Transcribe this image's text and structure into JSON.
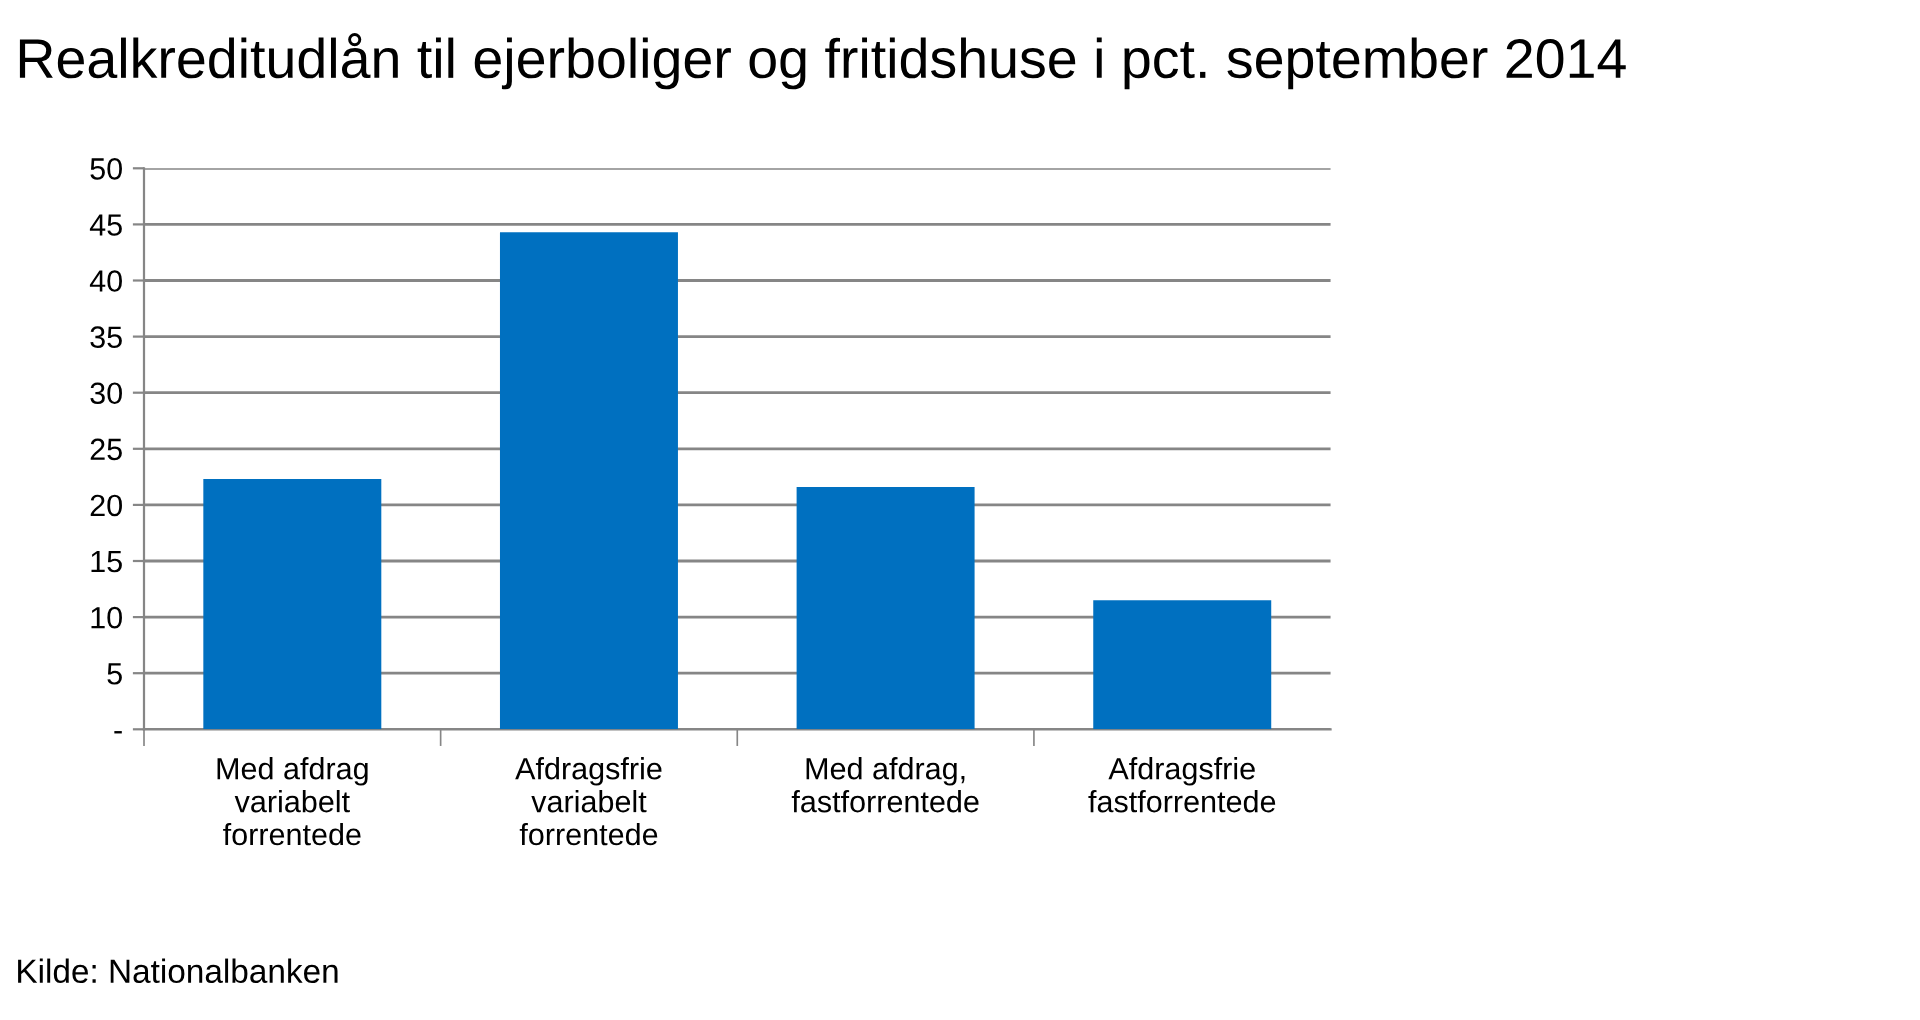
{
  "chart_data": {
    "type": "bar",
    "title": "Realkreditudlån til ejerboliger og fritidshuse i pct. september 2014",
    "categories": [
      "Med afdrag\nvariabelt\nforrentede",
      "Afdragsfrie\nvariabelt\nforrentede",
      "Med afdrag,\nfastforrentede",
      "Afdragsfrie\nfastforrentede"
    ],
    "values": [
      22.3,
      44.3,
      21.6,
      11.5
    ],
    "color": "#0070c0",
    "ylim": [
      0,
      50
    ],
    "yticks": [
      {
        "value": 0,
        "label": "-"
      },
      5,
      10,
      15,
      20,
      25,
      30,
      35,
      40,
      45,
      50
    ],
    "grid": "y",
    "annotations": [
      "Kilde: Nationalbanken"
    ]
  }
}
